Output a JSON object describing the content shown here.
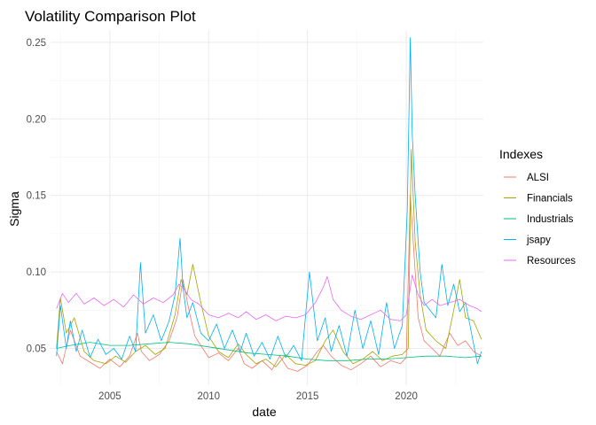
{
  "chart_data": {
    "type": "line",
    "title": "Volatility Comparison Plot",
    "xlabel": "date",
    "ylabel": "Sigma",
    "xlim": [
      2002.0,
      2023.9
    ],
    "ylim": [
      0.026,
      0.258
    ],
    "x_ticks": [
      2005,
      2010,
      2015,
      2020
    ],
    "x_tick_labels": [
      "2005",
      "2010",
      "2015",
      "2020"
    ],
    "y_ticks": [
      0.05,
      0.1,
      0.15,
      0.2,
      0.25
    ],
    "y_tick_labels": [
      "0.05",
      "0.10",
      "0.15",
      "0.20",
      "0.25"
    ],
    "grid": true,
    "legend": {
      "title": "Indexes",
      "position": "right",
      "entries": [
        "ALSI",
        "Financials",
        "Industrials",
        "jsapy",
        "Resources"
      ]
    },
    "series": [
      {
        "name": "ALSI",
        "color": "#F8766D",
        "x": [
          2002.3,
          2002.6,
          2003.0,
          2003.5,
          2004.0,
          2004.5,
          2005.0,
          2005.5,
          2006.0,
          2006.4,
          2006.6,
          2007.0,
          2007.5,
          2008.0,
          2008.4,
          2008.7,
          2009.0,
          2009.3,
          2009.7,
          2010.0,
          2010.5,
          2011.0,
          2011.5,
          2011.8,
          2012.2,
          2012.7,
          2013.2,
          2013.6,
          2014.0,
          2014.5,
          2015.0,
          2015.5,
          2015.8,
          2016.2,
          2016.7,
          2017.2,
          2017.7,
          2018.2,
          2018.7,
          2019.2,
          2019.7,
          2020.0,
          2020.2,
          2020.4,
          2020.6,
          2020.9,
          2021.3,
          2021.7,
          2022.2,
          2022.6,
          2023.0,
          2023.4,
          2023.8
        ],
        "values": [
          0.048,
          0.04,
          0.062,
          0.045,
          0.041,
          0.037,
          0.043,
          0.038,
          0.045,
          0.06,
          0.048,
          0.042,
          0.046,
          0.055,
          0.07,
          0.095,
          0.075,
          0.058,
          0.05,
          0.044,
          0.047,
          0.042,
          0.05,
          0.04,
          0.037,
          0.042,
          0.036,
          0.045,
          0.037,
          0.035,
          0.039,
          0.048,
          0.052,
          0.045,
          0.039,
          0.036,
          0.04,
          0.045,
          0.038,
          0.042,
          0.04,
          0.044,
          0.15,
          0.11,
          0.07,
          0.055,
          0.05,
          0.045,
          0.06,
          0.052,
          0.055,
          0.048,
          0.045
        ]
      },
      {
        "name": "Financials",
        "color": "#A3A500",
        "x": [
          2002.3,
          2002.5,
          2002.8,
          2003.2,
          2003.7,
          2004.2,
          2004.8,
          2005.3,
          2005.8,
          2006.3,
          2006.8,
          2007.3,
          2007.8,
          2008.3,
          2008.6,
          2008.9,
          2009.2,
          2009.6,
          2010.0,
          2010.5,
          2011.0,
          2011.5,
          2011.9,
          2012.4,
          2012.9,
          2013.4,
          2013.9,
          2014.4,
          2014.9,
          2015.4,
          2015.9,
          2016.3,
          2016.8,
          2017.3,
          2017.8,
          2018.3,
          2018.8,
          2019.3,
          2019.8,
          2020.1,
          2020.25,
          2020.45,
          2020.7,
          2021.0,
          2021.5,
          2022.0,
          2022.4,
          2022.7,
          2023.0,
          2023.4,
          2023.8
        ],
        "values": [
          0.05,
          0.083,
          0.06,
          0.07,
          0.048,
          0.042,
          0.04,
          0.045,
          0.041,
          0.048,
          0.052,
          0.046,
          0.05,
          0.072,
          0.095,
          0.085,
          0.105,
          0.08,
          0.058,
          0.048,
          0.044,
          0.053,
          0.046,
          0.04,
          0.043,
          0.038,
          0.046,
          0.04,
          0.039,
          0.042,
          0.055,
          0.062,
          0.048,
          0.04,
          0.043,
          0.048,
          0.042,
          0.045,
          0.046,
          0.05,
          0.18,
          0.12,
          0.085,
          0.062,
          0.055,
          0.05,
          0.075,
          0.095,
          0.07,
          0.068,
          0.056
        ]
      },
      {
        "name": "Industrials",
        "color": "#00BF7D",
        "x": [
          2002.3,
          2003.0,
          2004.0,
          2005.0,
          2006.0,
          2007.0,
          2008.0,
          2009.0,
          2010.0,
          2011.0,
          2012.0,
          2013.0,
          2014.0,
          2015.0,
          2016.0,
          2017.0,
          2018.0,
          2019.0,
          2020.0,
          2021.0,
          2022.0,
          2023.0,
          2023.8
        ],
        "values": [
          0.05,
          0.052,
          0.054,
          0.052,
          0.052,
          0.053,
          0.054,
          0.053,
          0.051,
          0.049,
          0.047,
          0.046,
          0.045,
          0.043,
          0.042,
          0.042,
          0.043,
          0.043,
          0.044,
          0.045,
          0.045,
          0.044,
          0.045
        ]
      },
      {
        "name": "jsapy",
        "color": "#00B0F6",
        "x": [
          2002.3,
          2002.5,
          2002.8,
          2003.0,
          2003.3,
          2003.6,
          2004.0,
          2004.4,
          2004.8,
          2005.2,
          2005.6,
          2006.0,
          2006.3,
          2006.55,
          2006.8,
          2007.2,
          2007.6,
          2008.0,
          2008.3,
          2008.55,
          2008.7,
          2008.9,
          2009.2,
          2009.6,
          2010.0,
          2010.4,
          2010.8,
          2011.2,
          2011.6,
          2011.9,
          2012.3,
          2012.7,
          2013.1,
          2013.5,
          2013.9,
          2014.3,
          2014.7,
          2015.1,
          2015.5,
          2015.9,
          2016.2,
          2016.6,
          2017.0,
          2017.4,
          2017.8,
          2018.2,
          2018.6,
          2019.0,
          2019.4,
          2019.8,
          2020.05,
          2020.2,
          2020.3,
          2020.45,
          2020.7,
          2020.9,
          2021.2,
          2021.5,
          2021.8,
          2022.1,
          2022.4,
          2022.7,
          2023.0,
          2023.3,
          2023.6,
          2023.8
        ],
        "values": [
          0.045,
          0.078,
          0.05,
          0.068,
          0.048,
          0.062,
          0.044,
          0.056,
          0.046,
          0.05,
          0.043,
          0.058,
          0.048,
          0.106,
          0.06,
          0.072,
          0.055,
          0.068,
          0.085,
          0.122,
          0.09,
          0.07,
          0.08,
          0.06,
          0.055,
          0.066,
          0.05,
          0.062,
          0.048,
          0.06,
          0.045,
          0.054,
          0.043,
          0.058,
          0.044,
          0.052,
          0.042,
          0.1,
          0.055,
          0.07,
          0.048,
          0.065,
          0.045,
          0.075,
          0.05,
          0.068,
          0.046,
          0.08,
          0.05,
          0.065,
          0.14,
          0.253,
          0.19,
          0.15,
          0.1,
          0.08,
          0.075,
          0.07,
          0.105,
          0.078,
          0.092,
          0.074,
          0.08,
          0.06,
          0.04,
          0.048
        ]
      },
      {
        "name": "Resources",
        "color": "#E76BF3",
        "x": [
          2002.3,
          2002.6,
          2002.9,
          2003.3,
          2003.7,
          2004.2,
          2004.7,
          2005.2,
          2005.7,
          2006.2,
          2006.7,
          2007.2,
          2007.7,
          2008.2,
          2008.5,
          2008.8,
          2009.1,
          2009.5,
          2010.0,
          2010.5,
          2011.0,
          2011.5,
          2011.9,
          2012.4,
          2012.9,
          2013.4,
          2013.9,
          2014.4,
          2014.9,
          2015.4,
          2015.8,
          2016.0,
          2016.3,
          2016.7,
          2017.2,
          2017.7,
          2018.2,
          2018.7,
          2019.2,
          2019.7,
          2020.0,
          2020.3,
          2020.6,
          2020.9,
          2021.3,
          2021.7,
          2022.2,
          2022.7,
          2023.2,
          2023.6,
          2023.8
        ],
        "values": [
          0.076,
          0.086,
          0.08,
          0.086,
          0.079,
          0.083,
          0.078,
          0.082,
          0.077,
          0.085,
          0.079,
          0.083,
          0.08,
          0.085,
          0.092,
          0.088,
          0.082,
          0.079,
          0.072,
          0.07,
          0.073,
          0.07,
          0.074,
          0.069,
          0.072,
          0.068,
          0.071,
          0.07,
          0.072,
          0.08,
          0.09,
          0.097,
          0.082,
          0.075,
          0.071,
          0.069,
          0.072,
          0.075,
          0.069,
          0.068,
          0.072,
          0.098,
          0.085,
          0.078,
          0.082,
          0.078,
          0.08,
          0.082,
          0.078,
          0.076,
          0.074
        ]
      }
    ]
  }
}
